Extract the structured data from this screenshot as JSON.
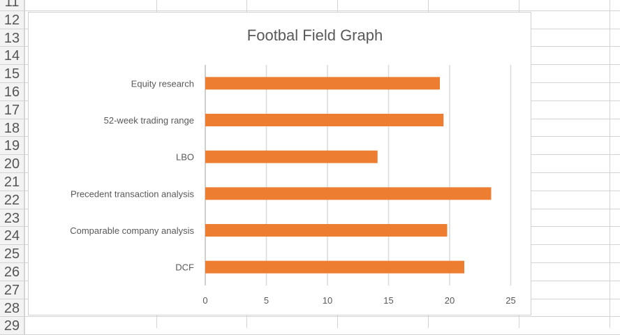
{
  "sheet": {
    "row_numbers": [
      "11",
      "12",
      "13",
      "14",
      "15",
      "16",
      "17",
      "18",
      "19",
      "20",
      "21",
      "22",
      "23",
      "24",
      "25",
      "26",
      "27",
      "28",
      "29"
    ]
  },
  "chart_data": {
    "type": "bar",
    "orientation": "horizontal",
    "title": "Footbal Field Graph",
    "categories": [
      "Equity research",
      "52-week trading range",
      "LBO",
      "Precedent transaction analysis",
      "Comparable company analysis",
      "DCF"
    ],
    "values": [
      19.2,
      19.5,
      14.1,
      23.4,
      19.8,
      21.2
    ],
    "xlim": [
      0,
      25
    ],
    "xticks": [
      "0",
      "5",
      "10",
      "15",
      "20",
      "25"
    ],
    "grid": true,
    "legend": "none",
    "bar_color": "#ED7D31"
  }
}
